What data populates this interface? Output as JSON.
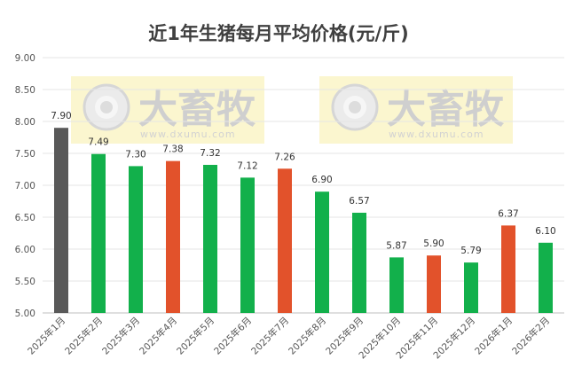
{
  "chart_data": {
    "type": "bar",
    "title": "近1年生猪每月平均价格(元/斤)",
    "categories": [
      "2025年1月",
      "2025年2月",
      "2025年3月",
      "2025年4月",
      "2025年5月",
      "2025年6月",
      "2025年7月",
      "2025年8月",
      "2025年9月",
      "2025年10月",
      "2025年11月",
      "2025年12月",
      "2026年1月",
      "2026年2月"
    ],
    "values": [
      7.9,
      7.49,
      7.3,
      7.38,
      7.32,
      7.12,
      7.26,
      6.9,
      6.57,
      5.87,
      5.9,
      5.79,
      6.37,
      6.1
    ],
    "value_labels": [
      "7.90",
      "7.49",
      "7.30",
      "7.38",
      "7.32",
      "7.12",
      "7.26",
      "6.90",
      "6.57",
      "5.87",
      "5.90",
      "5.79",
      "6.37",
      "6.10"
    ],
    "bar_colors": [
      "#595959",
      "#12b04b",
      "#12b04b",
      "#e2522b",
      "#12b04b",
      "#12b04b",
      "#e2522b",
      "#12b04b",
      "#12b04b",
      "#12b04b",
      "#e2522b",
      "#12b04b",
      "#e2522b",
      "#12b04b"
    ],
    "ylim": [
      5.0,
      9.0
    ],
    "yticks": [
      "5.00",
      "5.50",
      "6.00",
      "6.50",
      "7.00",
      "7.50",
      "8.00",
      "8.50",
      "9.00"
    ],
    "xlabel": "",
    "ylabel": "",
    "grid": true,
    "legend": "none"
  },
  "watermark": {
    "text": "大畜牧",
    "url": "www.dxumu.com",
    "background": "#fbf6cf",
    "icon": "eye-logo-icon"
  }
}
